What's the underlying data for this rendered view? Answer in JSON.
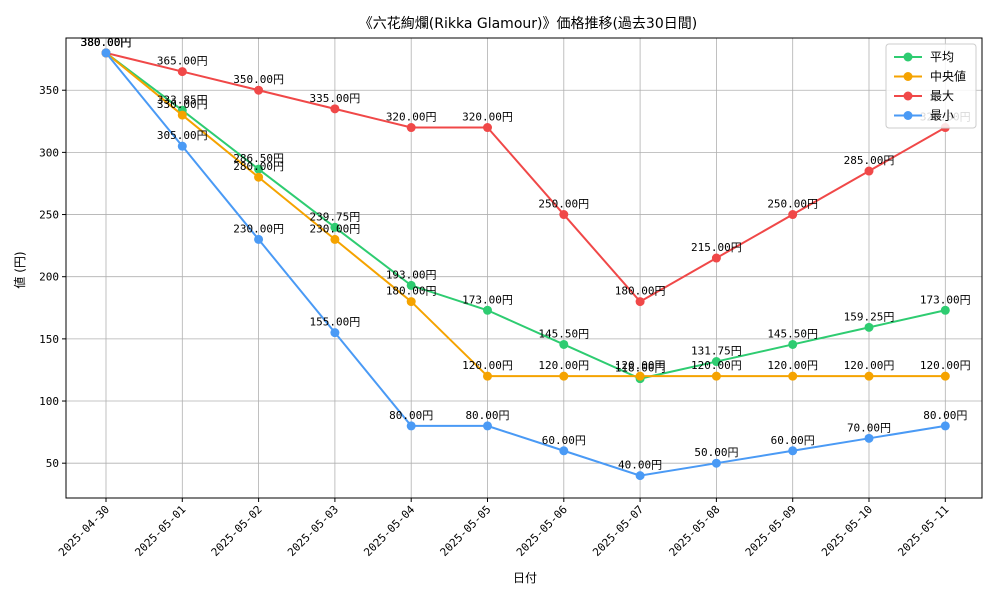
{
  "chart_data": {
    "type": "line",
    "title": "《六花絢爛(Rikka Glamour)》価格推移(過去30日間)",
    "xlabel": "日付",
    "ylabel": "値 (円)",
    "ylim": [
      22,
      392
    ],
    "yticks": [
      50,
      100,
      150,
      200,
      250,
      300,
      350
    ],
    "grid": true,
    "legend_position": "top-right",
    "value_suffix": "円",
    "categories": [
      "2025-04-30",
      "2025-05-01",
      "2025-05-02",
      "2025-05-03",
      "2025-05-04",
      "2025-05-05",
      "2025-05-06",
      "2025-05-07",
      "2025-05-08",
      "2025-05-09",
      "2025-05-10",
      "2025-05-11"
    ],
    "series": [
      {
        "name": "平均",
        "color": "#2ecc71",
        "values": [
          380.0,
          333.85,
          286.5,
          239.75,
          193.0,
          173.0,
          145.5,
          118.0,
          131.75,
          145.5,
          159.25,
          173.0
        ]
      },
      {
        "name": "中央値",
        "color": "#f5a300",
        "values": [
          380.0,
          330.0,
          280.0,
          230.0,
          180.0,
          120.0,
          120.0,
          120.0,
          120.0,
          120.0,
          120.0,
          120.0
        ]
      },
      {
        "name": "最大",
        "color": "#f04848",
        "values": [
          380.0,
          365.0,
          350.0,
          335.0,
          320.0,
          320.0,
          250.0,
          180.0,
          215.0,
          250.0,
          285.0,
          320.0
        ]
      },
      {
        "name": "最小",
        "color": "#4a9af5",
        "values": [
          380.0,
          305.0,
          230.0,
          155.0,
          80.0,
          80.0,
          60.0,
          40.0,
          50.0,
          60.0,
          70.0,
          80.0
        ]
      }
    ]
  }
}
